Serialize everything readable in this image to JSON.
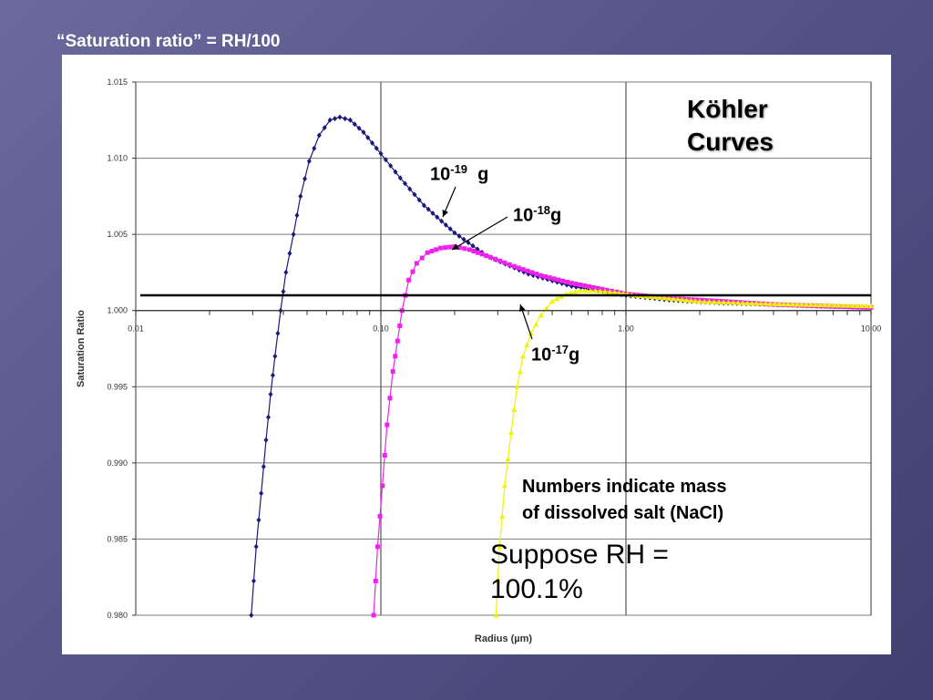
{
  "slide": {
    "title": "“Saturation ratio” = RH/100"
  },
  "annotations": {
    "kohler_line1": "Köhler",
    "kohler_line2": "Curves",
    "label_19_base": "10",
    "label_19_exp": "-19",
    "label_19_unit": "  g",
    "label_18_base": "10",
    "label_18_exp": "-18",
    "label_18_unit": "g",
    "label_17_base": "10",
    "label_17_exp": "-17",
    "label_17_unit": "g",
    "note_line1": "Numbers indicate mass",
    "note_line2": "of dissolved salt (NaCl)",
    "suppose_line1": "Suppose RH =",
    "suppose_line2": "100.1%"
  },
  "chart_data": {
    "type": "scatter",
    "xscale": "log",
    "xlim": [
      0.01,
      10
    ],
    "ylim": [
      0.98,
      1.015
    ],
    "xlabel": "Radius (µm)",
    "ylabel": "Saturation Ratio",
    "x_ticks": [
      0.01,
      0.1,
      1,
      10
    ],
    "x_tick_labels": [
      "0.01",
      "0.10",
      "1.00",
      "10.00"
    ],
    "y_ticks": [
      0.98,
      0.985,
      0.99,
      0.995,
      1.0,
      1.005,
      1.01,
      1.015
    ],
    "y_tick_labels": [
      "0.980",
      "0.985",
      "0.990",
      "0.995",
      "1.000",
      "1.005",
      "1.010",
      "1.015"
    ],
    "grid": true,
    "reference_line": {
      "y": 1.001
    },
    "series": [
      {
        "color": "#1a1a7a",
        "marker": "diamond",
        "points": [
          [
            0.0296,
            0.98
          ],
          [
            0.031,
            0.9845
          ],
          [
            0.0325,
            0.988
          ],
          [
            0.034,
            0.9915
          ],
          [
            0.0355,
            0.9945
          ],
          [
            0.037,
            0.997
          ],
          [
            0.039,
            1.0
          ],
          [
            0.041,
            1.0025
          ],
          [
            0.044,
            1.005
          ],
          [
            0.047,
            1.0075
          ],
          [
            0.051,
            1.0098
          ],
          [
            0.056,
            1.0115
          ],
          [
            0.062,
            1.0125
          ],
          [
            0.068,
            1.0127
          ],
          [
            0.075,
            1.0125
          ],
          [
            0.085,
            1.0117
          ],
          [
            0.1,
            1.0103
          ],
          [
            0.12,
            1.0087
          ],
          [
            0.15,
            1.0069
          ],
          [
            0.2,
            1.0051
          ],
          [
            0.27,
            1.0036
          ],
          [
            0.4,
            1.0024
          ],
          [
            0.6,
            1.0016
          ],
          [
            1.0,
            1.001
          ],
          [
            1.5,
            1.0007
          ],
          [
            2.5,
            1.0005
          ],
          [
            4.0,
            1.0004
          ],
          [
            6.0,
            1.0003
          ],
          [
            10.0,
            1.0002
          ]
        ]
      },
      {
        "color": "#ee22ee",
        "marker": "square",
        "points": [
          [
            0.0935,
            0.98
          ],
          [
            0.097,
            0.9845
          ],
          [
            0.1015,
            0.9885
          ],
          [
            0.106,
            0.9925
          ],
          [
            0.112,
            0.996
          ],
          [
            0.117,
            0.998
          ],
          [
            0.122,
            1.0
          ],
          [
            0.13,
            1.002
          ],
          [
            0.14,
            1.0031
          ],
          [
            0.155,
            1.0038
          ],
          [
            0.175,
            1.0041
          ],
          [
            0.2,
            1.0042
          ],
          [
            0.23,
            1.004
          ],
          [
            0.28,
            1.0035
          ],
          [
            0.35,
            1.0029
          ],
          [
            0.45,
            1.0023
          ],
          [
            0.6,
            1.0018
          ],
          [
            0.8,
            1.0014
          ],
          [
            1.0,
            1.0011
          ],
          [
            1.5,
            1.0008
          ],
          [
            2.5,
            1.0006
          ],
          [
            4.0,
            1.0004
          ],
          [
            6.0,
            1.0003
          ],
          [
            10.0,
            1.0002
          ]
        ]
      },
      {
        "color": "#f2f200",
        "marker": "triangle",
        "points": [
          [
            0.295,
            0.98
          ],
          [
            0.305,
            0.9845
          ],
          [
            0.32,
            0.9885
          ],
          [
            0.34,
            0.992
          ],
          [
            0.36,
            0.995
          ],
          [
            0.38,
            0.997
          ],
          [
            0.41,
            0.9985
          ],
          [
            0.45,
            0.9997
          ],
          [
            0.5,
            1.0006
          ],
          [
            0.57,
            1.0011
          ],
          [
            0.65,
            1.0013
          ],
          [
            0.75,
            1.0013
          ],
          [
            0.9,
            1.0012
          ],
          [
            1.1,
            1.001
          ],
          [
            1.5,
            1.0008
          ],
          [
            2.0,
            1.0006
          ],
          [
            3.0,
            1.0005
          ],
          [
            5.0,
            1.0004
          ],
          [
            10.0,
            1.0003
          ]
        ]
      }
    ]
  }
}
